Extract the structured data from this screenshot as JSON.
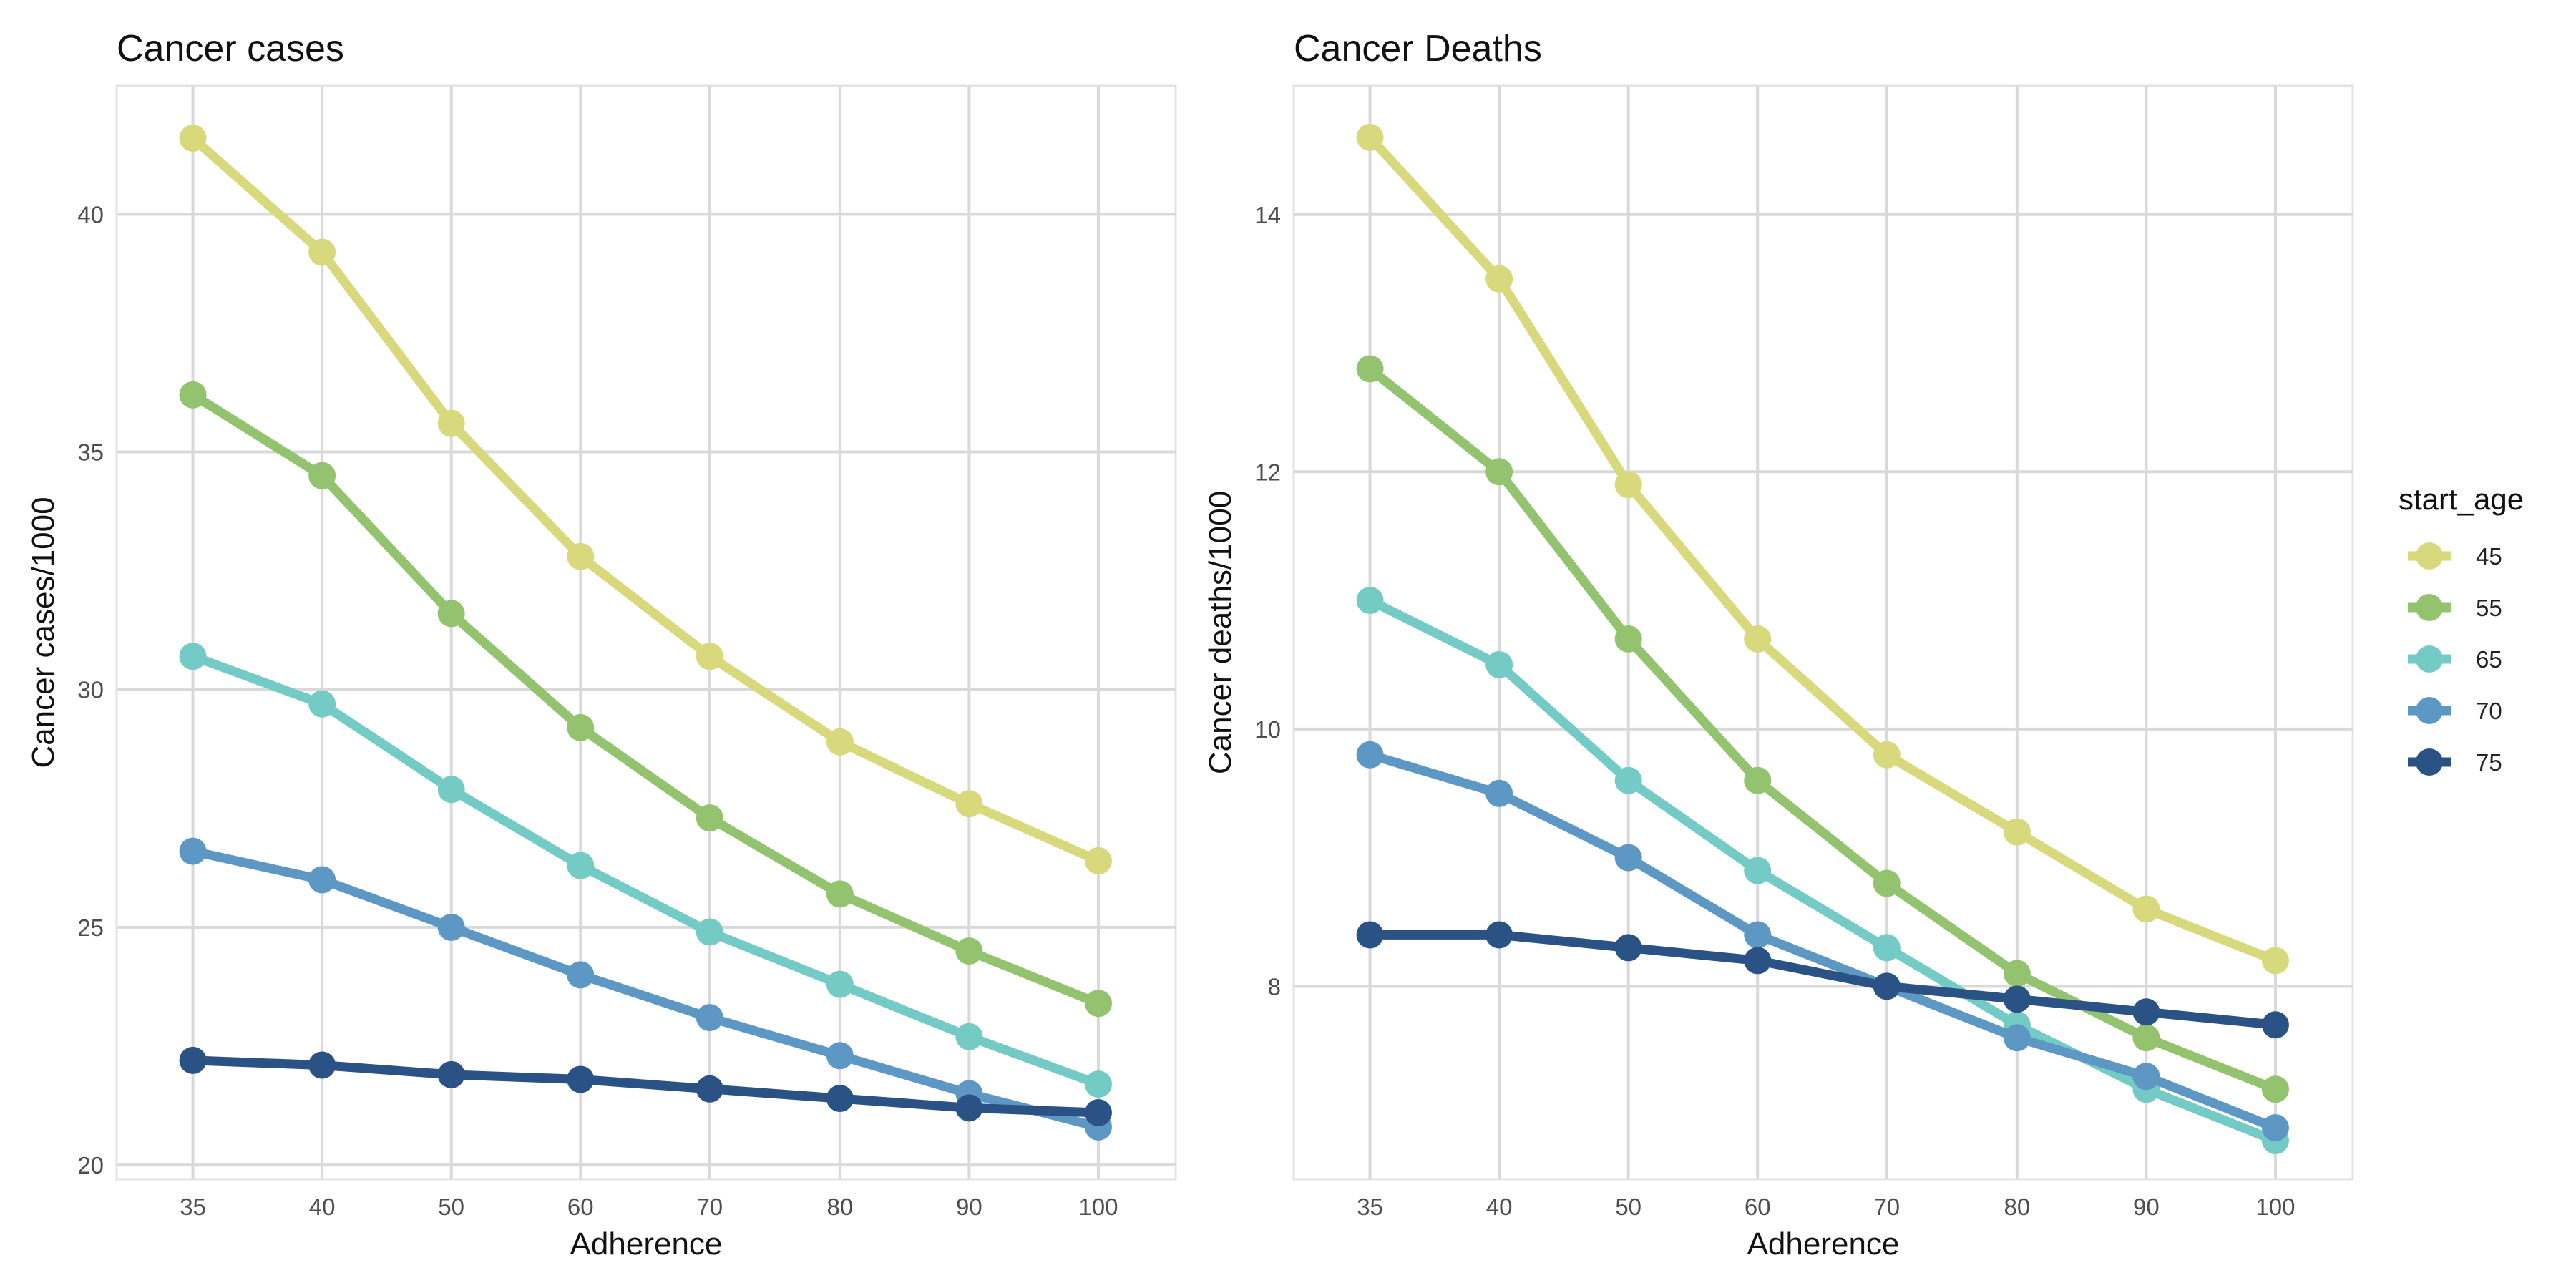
{
  "legend": {
    "title": "start_age",
    "entries": [
      "45",
      "55",
      "65",
      "70",
      "75"
    ],
    "colors": [
      "#d7d97c",
      "#93c36e",
      "#74cac4",
      "#5d98c4",
      "#2a5285"
    ]
  },
  "chart_data": [
    {
      "type": "line",
      "title": "Cancer cases",
      "xlabel": "Adherence",
      "ylabel": "Cancer cases/1000",
      "categories": [
        "35",
        "40",
        "50",
        "60",
        "70",
        "80",
        "90",
        "100"
      ],
      "yticks": [
        "20",
        "25",
        "30",
        "35",
        "40"
      ],
      "ylim": [
        19.7,
        42.7
      ],
      "grid": true,
      "legend": "right",
      "series": [
        {
          "name": "45",
          "values": [
            41.6,
            39.2,
            35.6,
            32.8,
            30.7,
            28.9,
            27.6,
            26.4
          ]
        },
        {
          "name": "55",
          "values": [
            36.2,
            34.5,
            31.6,
            29.2,
            27.3,
            25.7,
            24.5,
            23.4
          ]
        },
        {
          "name": "65",
          "values": [
            30.7,
            29.7,
            27.9,
            26.3,
            24.9,
            23.8,
            22.7,
            21.7
          ]
        },
        {
          "name": "70",
          "values": [
            26.6,
            26.0,
            25.0,
            24.0,
            23.1,
            22.3,
            21.5,
            20.8
          ]
        },
        {
          "name": "75",
          "values": [
            22.2,
            22.1,
            21.9,
            21.8,
            21.6,
            21.4,
            21.2,
            21.1
          ]
        }
      ]
    },
    {
      "type": "line",
      "title": "Cancer Deaths",
      "xlabel": "Adherence",
      "ylabel": "Cancer deaths/1000",
      "categories": [
        "35",
        "40",
        "50",
        "60",
        "70",
        "80",
        "90",
        "100"
      ],
      "yticks": [
        "8",
        "10",
        "12",
        "14"
      ],
      "ylim": [
        6.5,
        15.0
      ],
      "grid": true,
      "legend": "right",
      "series": [
        {
          "name": "45",
          "values": [
            14.6,
            13.5,
            11.9,
            10.7,
            9.8,
            9.2,
            8.6,
            8.2
          ]
        },
        {
          "name": "55",
          "values": [
            12.8,
            12.0,
            10.7,
            9.6,
            8.8,
            8.1,
            7.6,
            7.2
          ]
        },
        {
          "name": "65",
          "values": [
            11.0,
            10.5,
            9.6,
            8.9,
            8.3,
            7.7,
            7.2,
            6.8
          ]
        },
        {
          "name": "70",
          "values": [
            9.8,
            9.5,
            9.0,
            8.4,
            8.0,
            7.6,
            7.3,
            6.9
          ]
        },
        {
          "name": "75",
          "values": [
            8.4,
            8.4,
            8.3,
            8.2,
            8.0,
            7.9,
            7.8,
            7.7
          ]
        }
      ]
    }
  ]
}
